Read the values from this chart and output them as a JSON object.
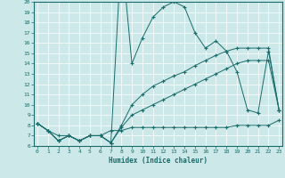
{
  "xlabel": "Humidex (Indice chaleur)",
  "xlim": [
    -0.3,
    23.3
  ],
  "ylim": [
    6,
    20
  ],
  "yticks": [
    6,
    7,
    8,
    9,
    10,
    11,
    12,
    13,
    14,
    15,
    16,
    17,
    18,
    19,
    20
  ],
  "xticks": [
    0,
    1,
    2,
    3,
    4,
    5,
    6,
    7,
    8,
    9,
    10,
    11,
    12,
    13,
    14,
    15,
    16,
    17,
    18,
    19,
    20,
    21,
    22,
    23
  ],
  "bg_color": "#cce8e8",
  "line_color": "#1a6b6b",
  "grid_color": "#b8d8d8",
  "line1_x": [
    0,
    1,
    2,
    3,
    4,
    5,
    6,
    7,
    8,
    9,
    10,
    11,
    12,
    13,
    14,
    15,
    16,
    17,
    18,
    19,
    20,
    21,
    22,
    23
  ],
  "line1_y": [
    8.2,
    7.5,
    6.5,
    7.0,
    6.5,
    7.0,
    7.0,
    6.3,
    25.0,
    14.0,
    16.5,
    18.5,
    19.5,
    20.0,
    19.5,
    17.0,
    15.5,
    16.2,
    15.2,
    13.2,
    9.5,
    9.2,
    15.2,
    9.5
  ],
  "line2_x": [
    0,
    1,
    2,
    3,
    4,
    5,
    6,
    7,
    8,
    9,
    10,
    11,
    12,
    13,
    14,
    15,
    16,
    17,
    18,
    19,
    20,
    21,
    22,
    23
  ],
  "line2_y": [
    8.2,
    7.5,
    6.5,
    7.0,
    6.5,
    7.0,
    7.0,
    6.3,
    8.0,
    10.0,
    11.0,
    11.8,
    12.3,
    12.8,
    13.2,
    13.8,
    14.3,
    14.8,
    15.2,
    15.5,
    15.5,
    15.5,
    15.5,
    9.5
  ],
  "line3_x": [
    0,
    1,
    2,
    3,
    4,
    5,
    6,
    7,
    8,
    9,
    10,
    11,
    12,
    13,
    14,
    15,
    16,
    17,
    18,
    19,
    20,
    21,
    22,
    23
  ],
  "line3_y": [
    8.2,
    7.5,
    6.5,
    7.0,
    6.5,
    7.0,
    7.0,
    6.3,
    7.8,
    9.0,
    9.5,
    10.0,
    10.5,
    11.0,
    11.5,
    12.0,
    12.5,
    13.0,
    13.5,
    14.0,
    14.3,
    14.3,
    14.3,
    9.5
  ],
  "line4_x": [
    0,
    1,
    2,
    3,
    4,
    5,
    6,
    7,
    8,
    9,
    10,
    11,
    12,
    13,
    14,
    15,
    16,
    17,
    18,
    19,
    20,
    21,
    22,
    23
  ],
  "line4_y": [
    8.2,
    7.5,
    7.0,
    7.0,
    6.5,
    7.0,
    7.0,
    7.5,
    7.5,
    7.8,
    7.8,
    7.8,
    7.8,
    7.8,
    7.8,
    7.8,
    7.8,
    7.8,
    7.8,
    8.0,
    8.0,
    8.0,
    8.0,
    8.5
  ]
}
